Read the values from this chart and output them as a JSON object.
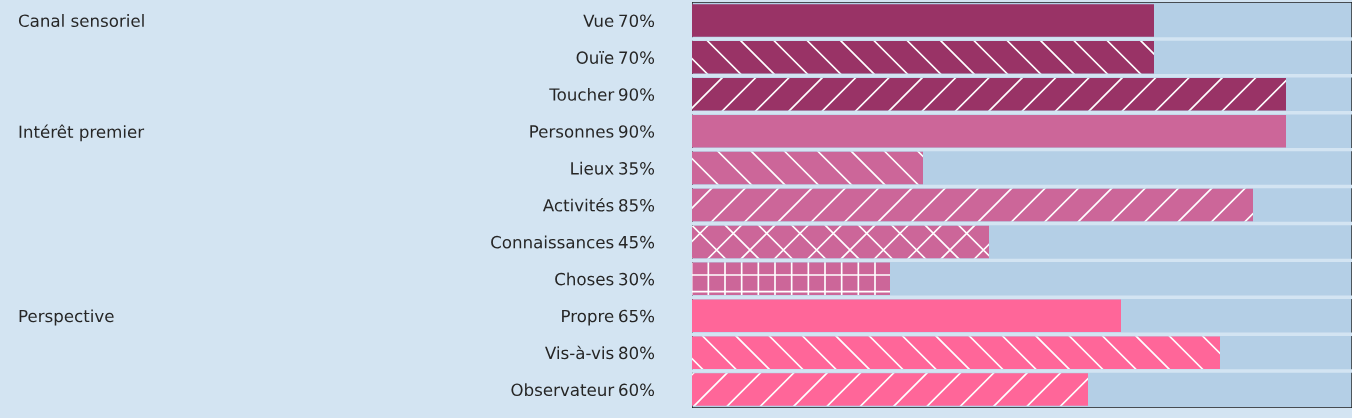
{
  "chart_data": {
    "type": "bar",
    "orientation": "horizontal",
    "categories": [
      "Vue",
      "Ouïe",
      "Toucher",
      "Personnes",
      "Lieux",
      "Activités",
      "Connaissances",
      "Choses",
      "Propre",
      "Vis-à-vis",
      "Observateur"
    ],
    "series": [
      {
        "colors": [
          "#993366",
          "#993366",
          "#993366",
          "#cc6699",
          "#cc6699",
          "#cc6699",
          "#cc6699",
          "#cc6699",
          "#ff6699",
          "#ff6699",
          "#ff6699"
        ],
        "values": [
          70,
          70,
          90,
          90,
          35,
          85,
          45,
          30,
          65,
          80,
          60
        ],
        "value_labels": [
          "70%",
          "70%",
          "90%",
          "90%",
          "35%",
          "85%",
          "45%",
          "30%",
          "65%",
          "80%",
          "60%"
        ]
      }
    ],
    "bands": [
      {
        "axis": "x",
        "from": 0,
        "to": 100,
        "color": "#b4cfe6"
      }
    ],
    "annotations": [
      "Canal sensoriel",
      "Intérêt premier",
      "Perspective"
    ],
    "xlim": [
      0,
      100
    ],
    "tick_labels": "y",
    "legend": false
  }
}
